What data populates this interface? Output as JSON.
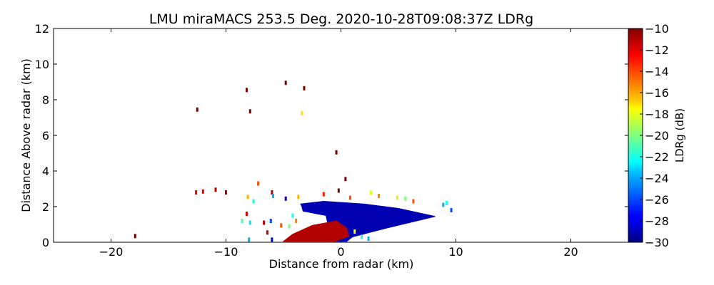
{
  "chart_data": {
    "type": "heatmap",
    "title": "LMU miraMACS 253.5 Deg. 2020-10-28T09:08:37Z  LDRg",
    "xlabel": "Distance from radar (km)",
    "ylabel": "Distance Above radar  (km)",
    "xlim": [
      -25,
      25
    ],
    "ylim": [
      0,
      12
    ],
    "xticks": [
      -20,
      -10,
      0,
      10,
      20
    ],
    "yticks": [
      0,
      2,
      4,
      6,
      8,
      10,
      12
    ],
    "colorbar": {
      "label": "LDRg (dB)",
      "range": [
        -30,
        -10
      ],
      "ticks": [
        -10,
        -12,
        -14,
        -16,
        -18,
        -20,
        -22,
        -24,
        -26,
        -28,
        -30
      ],
      "colormap": "jet"
    },
    "features": [
      {
        "name": "blue-echo-layer",
        "ldr_db": -29,
        "polygon": [
          [
            -3.5,
            2.15
          ],
          [
            -1.5,
            2.3
          ],
          [
            2,
            2.15
          ],
          [
            5,
            1.9
          ],
          [
            8.2,
            1.45
          ],
          [
            4,
            0.8
          ],
          [
            1,
            0.3
          ],
          [
            0.5,
            0.05
          ],
          [
            -0.6,
            0.05
          ],
          [
            -1,
            0.6
          ],
          [
            -1.3,
            1.5
          ],
          [
            -3.3,
            1.75
          ],
          [
            -3.4,
            2.0
          ]
        ]
      },
      {
        "name": "red-near-ground-echo",
        "ldr_db": -11,
        "polygon": [
          [
            -5,
            0.05
          ],
          [
            -0.5,
            0.05
          ],
          [
            0.7,
            0.35
          ],
          [
            0.5,
            0.8
          ],
          [
            -0.4,
            1.2
          ],
          [
            -2.5,
            0.95
          ],
          [
            -4.2,
            0.45
          ]
        ]
      }
    ],
    "scatter": [
      {
        "x": -17.9,
        "y": 0.35,
        "ldr_db": -10
      },
      {
        "x": -12.5,
        "y": 7.45,
        "ldr_db": -10
      },
      {
        "x": -8.2,
        "y": 8.55,
        "ldr_db": -10
      },
      {
        "x": -7.9,
        "y": 7.35,
        "ldr_db": -10
      },
      {
        "x": -4.8,
        "y": 8.95,
        "ldr_db": -10
      },
      {
        "x": -3.2,
        "y": 8.65,
        "ldr_db": -10
      },
      {
        "x": -3.4,
        "y": 7.25,
        "ldr_db": -17
      },
      {
        "x": -0.4,
        "y": 5.05,
        "ldr_db": -10
      },
      {
        "x": 0.4,
        "y": 3.55,
        "ldr_db": -10
      },
      {
        "x": -12.6,
        "y": 2.8,
        "ldr_db": -12
      },
      {
        "x": -12.0,
        "y": 2.85,
        "ldr_db": -12
      },
      {
        "x": -10.9,
        "y": 2.95,
        "ldr_db": -11
      },
      {
        "x": -10.0,
        "y": 2.8,
        "ldr_db": -11
      },
      {
        "x": -7.2,
        "y": 3.3,
        "ldr_db": -14
      },
      {
        "x": -6.0,
        "y": 2.8,
        "ldr_db": -11
      },
      {
        "x": -8.1,
        "y": 2.55,
        "ldr_db": -16
      },
      {
        "x": -7.6,
        "y": 2.3,
        "ldr_db": -22
      },
      {
        "x": -5.9,
        "y": 2.6,
        "ldr_db": -24
      },
      {
        "x": -4.8,
        "y": 2.45,
        "ldr_db": -28
      },
      {
        "x": -3.7,
        "y": 2.55,
        "ldr_db": -16
      },
      {
        "x": -0.2,
        "y": 2.9,
        "ldr_db": -10
      },
      {
        "x": -1.5,
        "y": 2.7,
        "ldr_db": -13
      },
      {
        "x": 0.8,
        "y": 2.5,
        "ldr_db": -14
      },
      {
        "x": 2.6,
        "y": 2.8,
        "ldr_db": -18
      },
      {
        "x": 3.3,
        "y": 2.6,
        "ldr_db": -15
      },
      {
        "x": 4.9,
        "y": 2.5,
        "ldr_db": -17
      },
      {
        "x": 5.6,
        "y": 2.45,
        "ldr_db": -20
      },
      {
        "x": 6.3,
        "y": 2.3,
        "ldr_db": -14
      },
      {
        "x": 8.9,
        "y": 2.1,
        "ldr_db": -24
      },
      {
        "x": 9.2,
        "y": 2.2,
        "ldr_db": -22
      },
      {
        "x": 9.6,
        "y": 1.8,
        "ldr_db": -26
      },
      {
        "x": -8.2,
        "y": 1.6,
        "ldr_db": -12
      },
      {
        "x": -7.9,
        "y": 1.1,
        "ldr_db": -23
      },
      {
        "x": -8.6,
        "y": 1.2,
        "ldr_db": -21
      },
      {
        "x": -6.1,
        "y": 1.2,
        "ldr_db": -26
      },
      {
        "x": -6.7,
        "y": 1.1,
        "ldr_db": -11
      },
      {
        "x": -5.2,
        "y": 0.95,
        "ldr_db": -14
      },
      {
        "x": -6.4,
        "y": 0.55,
        "ldr_db": -11
      },
      {
        "x": -6.0,
        "y": 0.15,
        "ldr_db": -28
      },
      {
        "x": -8.0,
        "y": 0.15,
        "ldr_db": -24
      },
      {
        "x": -4.2,
        "y": 1.5,
        "ldr_db": -22
      },
      {
        "x": -3.9,
        "y": 1.2,
        "ldr_db": -15
      },
      {
        "x": -4.5,
        "y": 0.9,
        "ldr_db": -20
      },
      {
        "x": 1.8,
        "y": 0.3,
        "ldr_db": -22
      },
      {
        "x": 1.2,
        "y": 0.6,
        "ldr_db": -18
      },
      {
        "x": 2.4,
        "y": 0.2,
        "ldr_db": -24
      }
    ]
  }
}
